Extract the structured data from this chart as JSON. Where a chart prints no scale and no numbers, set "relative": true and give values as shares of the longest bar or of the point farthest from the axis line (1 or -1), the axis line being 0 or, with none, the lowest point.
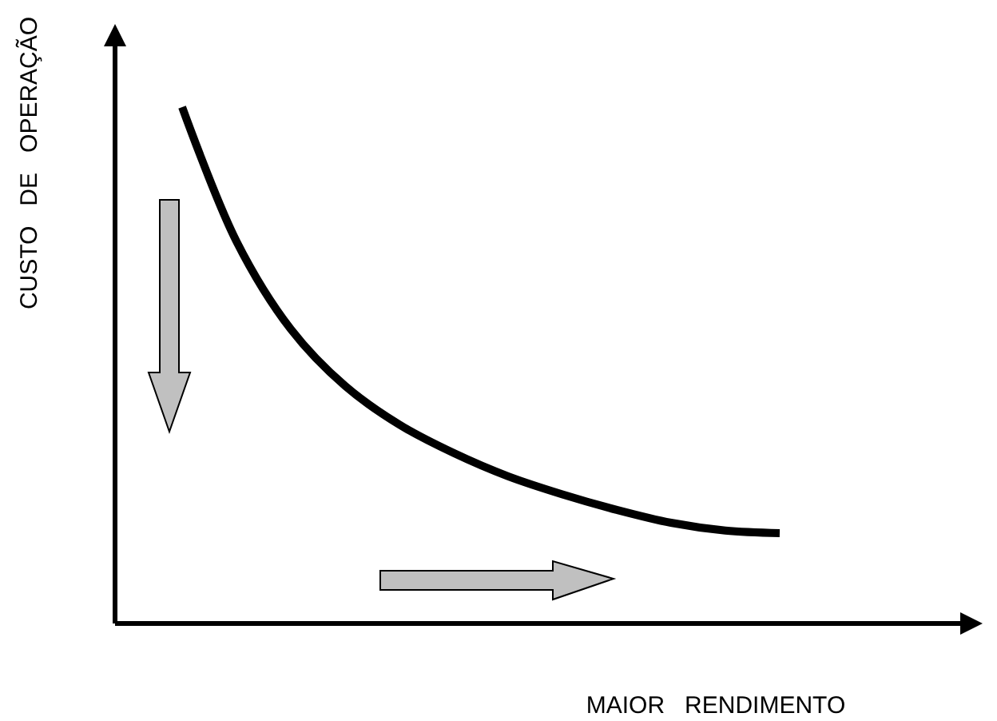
{
  "chart_data": {
    "type": "line",
    "relative": true,
    "xlabel": "MAIOR   RENDIMENTO",
    "ylabel": "CUSTO   DE   OPERAÇÃO",
    "categories": [
      null,
      null,
      null,
      null,
      null,
      null,
      null,
      null,
      null,
      null,
      null,
      null
    ],
    "series": [
      {
        "color": "#000000",
        "values": [
          1,
          0.74,
          0.57,
          0.46,
          0.385,
          0.33,
          0.285,
          0.25,
          0.22,
          0.195,
          0.18,
          0.175
        ]
      }
    ],
    "grid": false,
    "marker": "none",
    "line_style": "solid"
  }
}
